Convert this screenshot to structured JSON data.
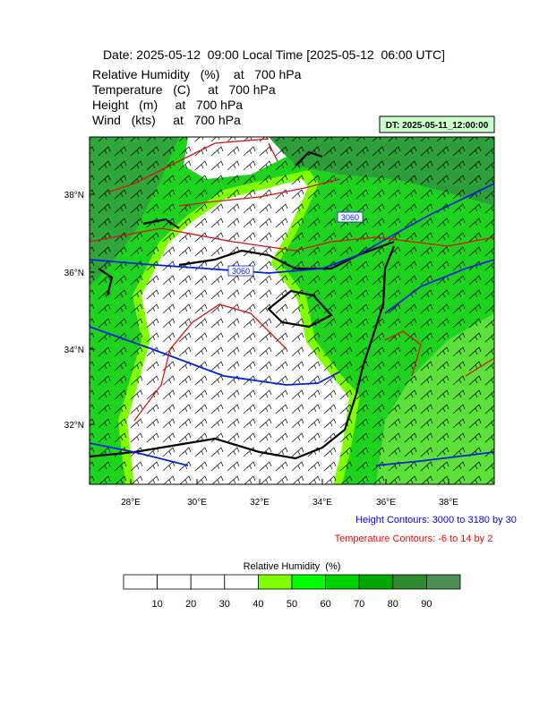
{
  "header": {
    "title": "Date: 2025-05-12  09:00 Local Time [2025-05-12  06:00 UTC]",
    "lines": [
      "Relative Humidity   (%)    at   700 hPa",
      "Temperature   (C)     at   700 hPa",
      "Height   (m)     at   700 hPa",
      "Wind   (kts)     at   700 hPa"
    ],
    "dt": "DT: 2025-05-11_12:00:00"
  },
  "map": {
    "lat_labels": [
      "38°N",
      "36°N",
      "34°N",
      "32°N"
    ],
    "lon_labels": [
      "28°E",
      "30°E",
      "32°E",
      "34°E",
      "36°E",
      "38°E"
    ],
    "contour_labels": [
      "3060",
      "3060"
    ]
  },
  "notes": {
    "height": "Height Contours: 3000 to 3180 by 30",
    "temperature": "Temperature Contours: -6 to 14 by 2"
  },
  "colorbar": {
    "title": "Relative Humidity  (%)",
    "ticks": [
      10,
      20,
      30,
      40,
      50,
      60,
      70,
      80,
      90
    ],
    "colors": [
      "#ffffff",
      "#ffffff",
      "#ffffff",
      "#ffffff",
      "#80ff00",
      "#00ff00",
      "#00d200",
      "#00a800",
      "#2e8b2e",
      "#4d8f55"
    ]
  }
}
